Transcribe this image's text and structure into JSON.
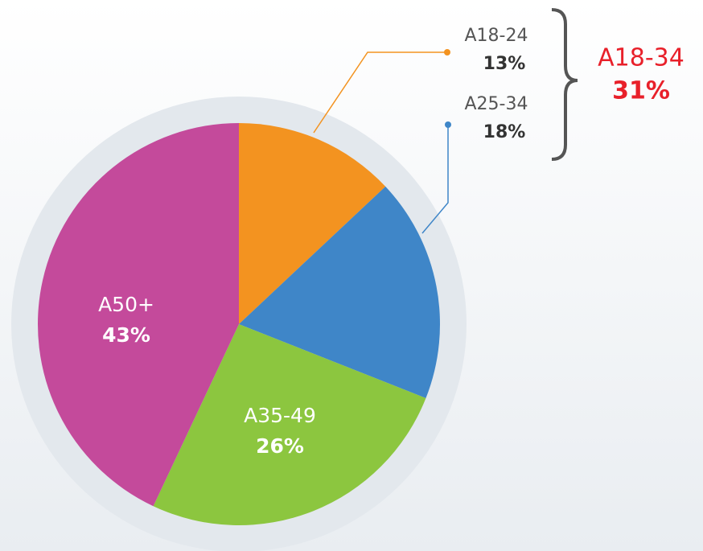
{
  "chart_data": {
    "type": "pie",
    "categories": [
      "A18-24",
      "A25-34",
      "A35-49",
      "A50+"
    ],
    "values": [
      13,
      18,
      26,
      43
    ],
    "value_labels": [
      "13%",
      "18%",
      "26%",
      "43%"
    ],
    "colors": [
      "#f39320",
      "#3f86c8",
      "#8cc63f",
      "#c44a9b"
    ],
    "annotation": {
      "text": "A18-34",
      "value": 31,
      "value_label": "31%"
    }
  }
}
